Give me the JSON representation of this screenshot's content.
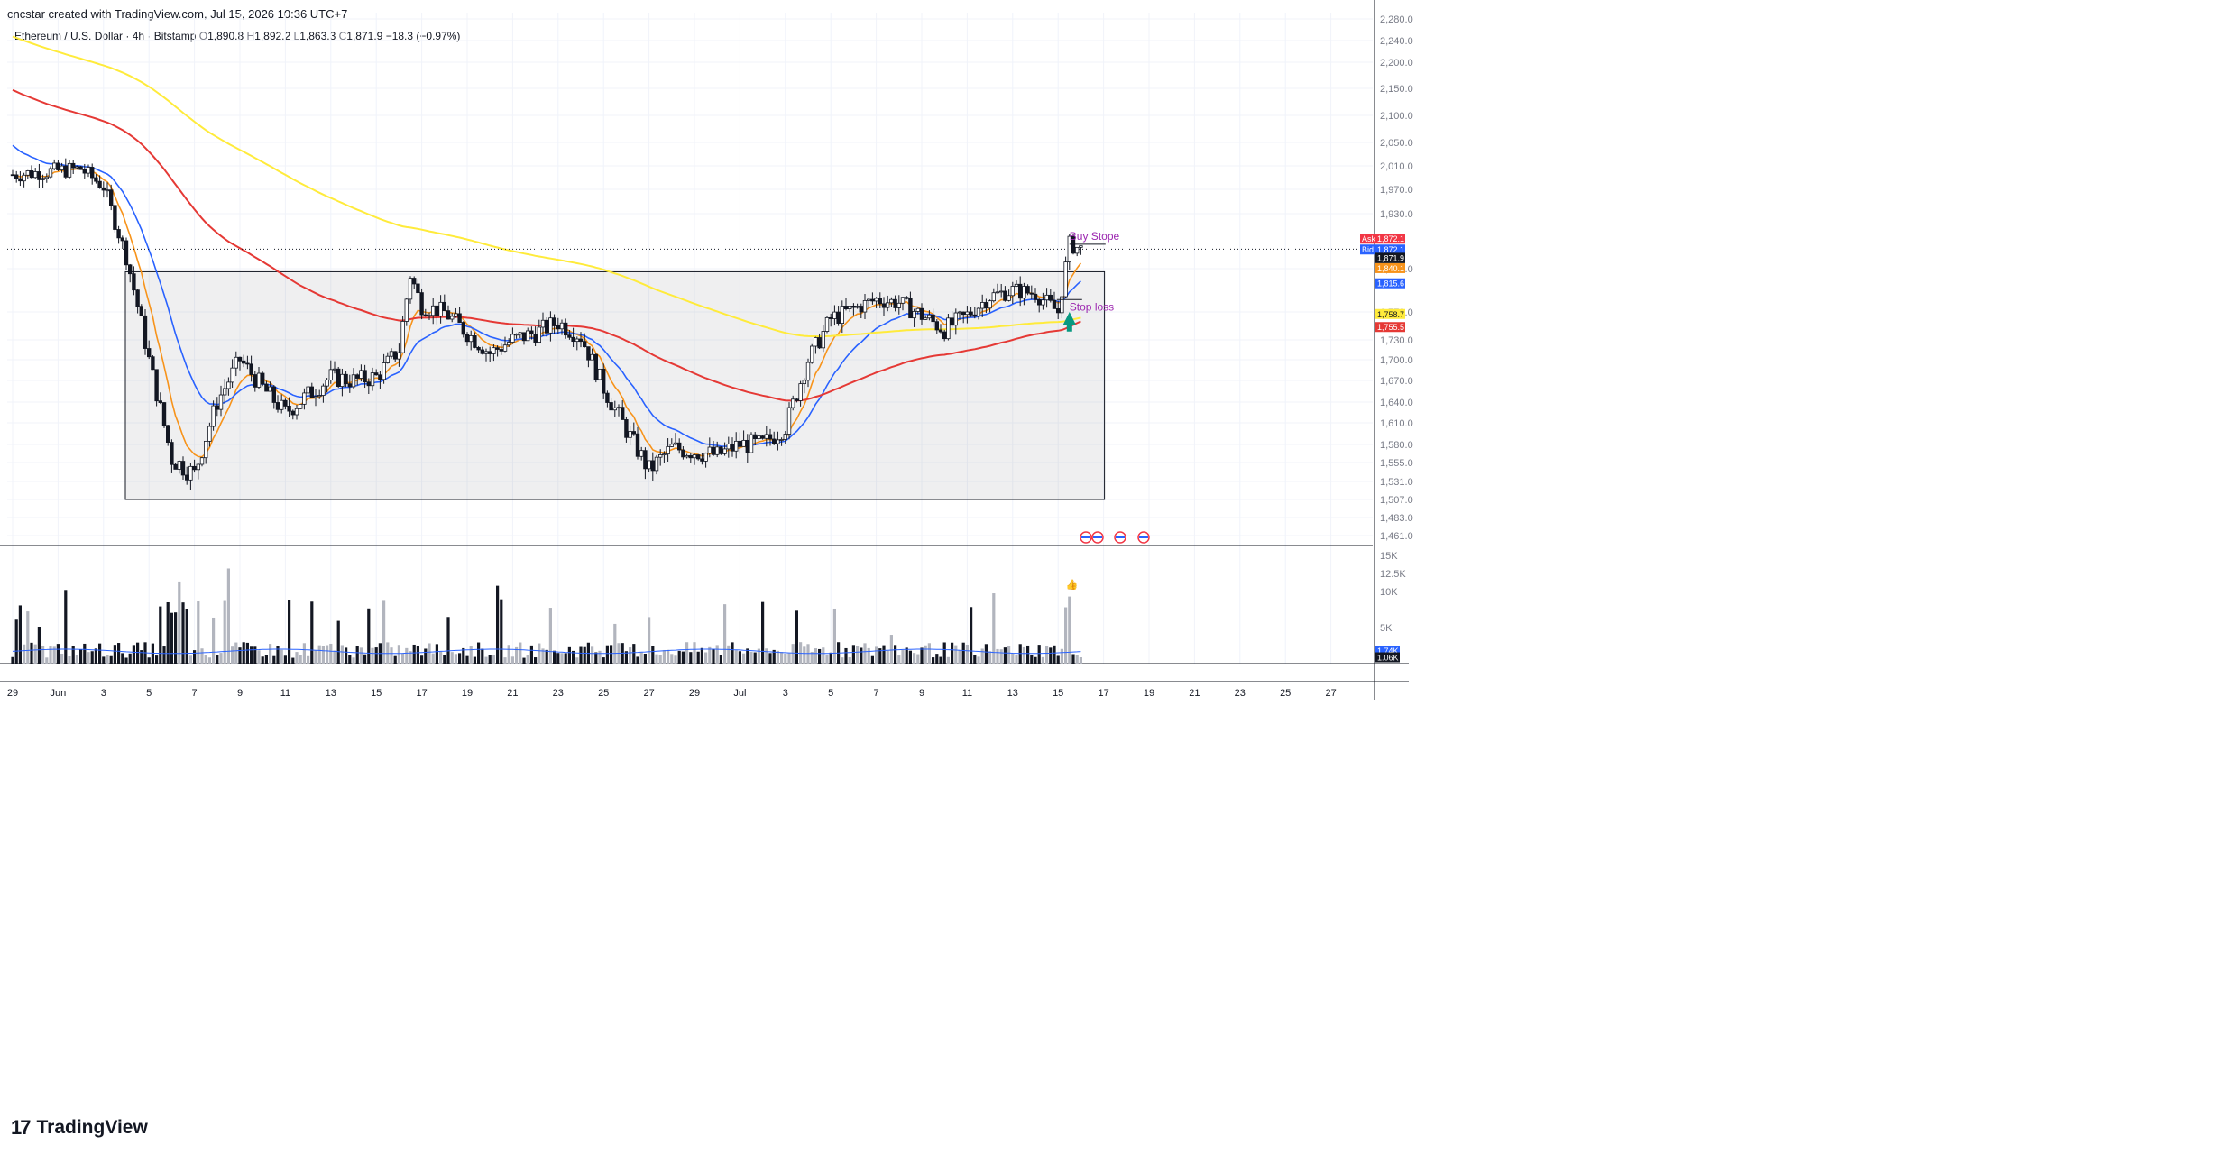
{
  "header": {
    "created_by": "cncstar created with TradingView.com, Jul 15, 2026 10:36 UTC+7",
    "symbol": "Ethereum / U.S. Dollar · 4h · Bitstamp",
    "o_label": "O",
    "o_value": "1,890.8",
    "h_label": "H",
    "h_value": "1,892.2",
    "l_label": "L",
    "l_value": "1,863.3",
    "c_label": "C",
    "c_value": "1,871.9",
    "change": "−18.3 (−0.97%)"
  },
  "footer": {
    "brand": "TradingView"
  },
  "colors": {
    "up": "#ffffff",
    "down": "#131722",
    "ema_fast": "#f7931a",
    "ema_mid": "#2962ff",
    "ema_slow": "#e53935",
    "ema_long": "#ffeb3b",
    "annotation": "#9c27b0",
    "ask": "#f23645",
    "arrow": "#089981"
  },
  "chart_data": {
    "type": "candlestick",
    "symbol": "Ethereum / U.S. Dollar",
    "timeframe": "4h",
    "exchange": "Bitstamp",
    "y_ticks": [
      "2,280.0",
      "2,240.0",
      "2,200.0",
      "2,150.0",
      "2,100.0",
      "2,050.0",
      "2,010.0",
      "1,970.0",
      "1,930.0",
      "1,840.0",
      "1,770.0",
      "1,730.0",
      "1,700.0",
      "1,670.0",
      "1,640.0",
      "1,610.0",
      "1,580.0",
      "1,555.0",
      "1,531.0",
      "1,507.0",
      "1,483.0",
      "1,461.0"
    ],
    "ylim": [
      1450,
      2290
    ],
    "x_ticks": [
      "29",
      "Jun",
      "3",
      "5",
      "7",
      "9",
      "11",
      "13",
      "15",
      "17",
      "19",
      "21",
      "23",
      "25",
      "27",
      "29",
      "Jul",
      "3",
      "5",
      "7",
      "9",
      "11",
      "13",
      "15",
      "17",
      "19",
      "21",
      "23",
      "25",
      "27"
    ],
    "candle_anchors": [
      {
        "x": "May 29",
        "y": 1995
      },
      {
        "x": "Jun 1",
        "y": 2005
      },
      {
        "x": "Jun 2",
        "y": 1975
      },
      {
        "x": "Jun 3",
        "y": 1860
      },
      {
        "x": "Jun 4",
        "y": 1700
      },
      {
        "x": "Jun 5",
        "y": 1560
      },
      {
        "x": "Jun 6",
        "y": 1540
      },
      {
        "x": "Jun 7",
        "y": 1640
      },
      {
        "x": "Jun 8",
        "y": 1700
      },
      {
        "x": "Jun 9",
        "y": 1660
      },
      {
        "x": "Jun 10",
        "y": 1625
      },
      {
        "x": "Jun 11",
        "y": 1650
      },
      {
        "x": "Jun 12",
        "y": 1675
      },
      {
        "x": "Jun 13",
        "y": 1670
      },
      {
        "x": "Jun 14",
        "y": 1675
      },
      {
        "x": "Jun 15",
        "y": 1715
      },
      {
        "x": "Jun 15.5",
        "y": 1830
      },
      {
        "x": "Jun 16",
        "y": 1780
      },
      {
        "x": "Jun 17",
        "y": 1770
      },
      {
        "x": "Jun 18",
        "y": 1740
      },
      {
        "x": "Jun 19",
        "y": 1710
      },
      {
        "x": "Jun 20",
        "y": 1730
      },
      {
        "x": "Jun 21",
        "y": 1740
      },
      {
        "x": "Jun 22",
        "y": 1755
      },
      {
        "x": "Jun 23",
        "y": 1735
      },
      {
        "x": "Jun 24",
        "y": 1660
      },
      {
        "x": "Jun 25",
        "y": 1600
      },
      {
        "x": "Jun 26",
        "y": 1545
      },
      {
        "x": "Jun 27",
        "y": 1575
      },
      {
        "x": "Jun 28",
        "y": 1570
      },
      {
        "x": "Jun 29",
        "y": 1565
      },
      {
        "x": "Jun 30",
        "y": 1580
      },
      {
        "x": "Jul 1",
        "y": 1580
      },
      {
        "x": "Jul 2",
        "y": 1605
      },
      {
        "x": "Jul 3",
        "y": 1700
      },
      {
        "x": "Jul 4",
        "y": 1760
      },
      {
        "x": "Jul 5",
        "y": 1775
      },
      {
        "x": "Jul 6",
        "y": 1790
      },
      {
        "x": "Jul 7",
        "y": 1785
      },
      {
        "x": "Jul 8",
        "y": 1765
      },
      {
        "x": "Jul 9",
        "y": 1745
      },
      {
        "x": "Jul 10",
        "y": 1765
      },
      {
        "x": "Jul 11",
        "y": 1795
      },
      {
        "x": "Jul 12",
        "y": 1805
      },
      {
        "x": "Jul 13",
        "y": 1800
      },
      {
        "x": "Jul 14",
        "y": 1770
      },
      {
        "x": "Jul 14.5",
        "y": 1880
      },
      {
        "x": "Jul 15",
        "y": 1871.9
      }
    ],
    "emas": [
      {
        "name": "EMA fast",
        "color": "#f7931a",
        "last": 1840.1
      },
      {
        "name": "EMA mid",
        "color": "#2962ff",
        "last": 1815.6
      },
      {
        "name": "EMA slow",
        "color": "#e53935",
        "last": 1755.5
      },
      {
        "name": "EMA long",
        "color": "#ffeb3b",
        "last": 1758.7
      }
    ],
    "range_box": {
      "top": 1835,
      "bottom": 1507,
      "from": "Jun 3",
      "to": "Jul 16"
    },
    "annotations": [
      {
        "text": "Buy Stope",
        "price": 1880
      },
      {
        "text": "Stop loss",
        "price": 1778
      }
    ],
    "price_labels": [
      {
        "label": "Ask",
        "value": "1,872.1"
      },
      {
        "label": "Bid",
        "value": "1,872.1"
      },
      {
        "label": "",
        "value": "1,871.9"
      },
      {
        "label": "",
        "value": "23:16"
      },
      {
        "label": "",
        "value": "1,840.1"
      },
      {
        "label": "",
        "value": "1,815.6"
      },
      {
        "label": "",
        "value": "1,758.7"
      },
      {
        "label": "",
        "value": "1,755.5"
      }
    ],
    "volume": {
      "y_ticks": [
        "15K",
        "12.5K",
        "10K",
        "5K"
      ],
      "last_labels": [
        "1.74K",
        "1.06K"
      ],
      "ylim": [
        0,
        15000
      ]
    }
  }
}
